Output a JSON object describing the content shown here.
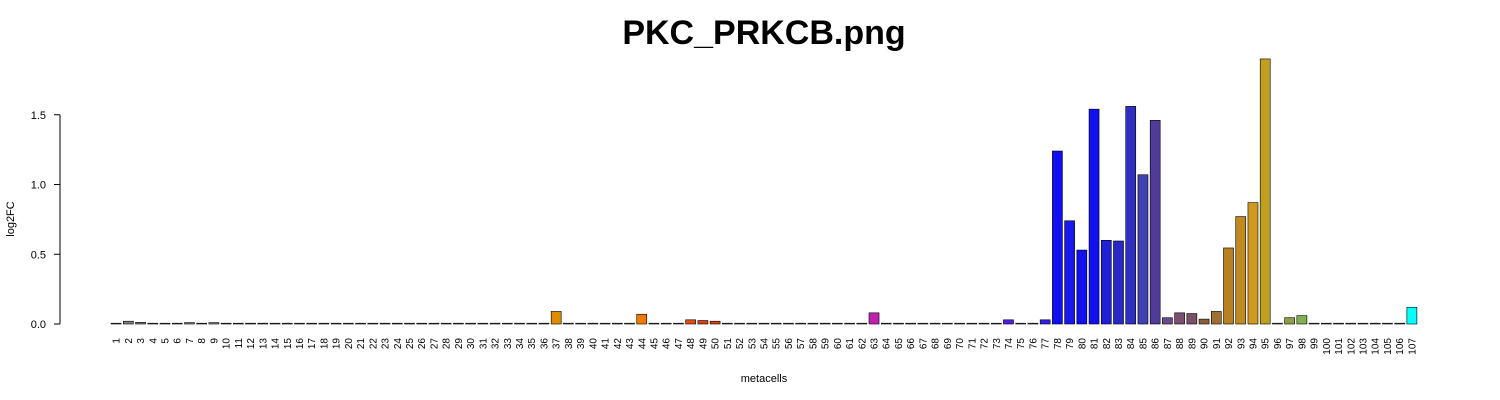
{
  "chart_data": {
    "type": "bar",
    "title": "PKC_PRKCB.png",
    "xlabel": "metacells",
    "ylabel": "log2FC",
    "ylim": [
      0,
      1.9
    ],
    "yticks": [
      0.0,
      0.5,
      1.0,
      1.5
    ],
    "ytick_labels": [
      "0.0",
      "0.5",
      "1.0",
      "1.5"
    ],
    "grid": false,
    "categories": [
      "1",
      "2",
      "3",
      "4",
      "5",
      "6",
      "7",
      "8",
      "9",
      "10",
      "11",
      "12",
      "13",
      "14",
      "15",
      "16",
      "17",
      "18",
      "19",
      "20",
      "21",
      "22",
      "23",
      "24",
      "25",
      "26",
      "27",
      "28",
      "29",
      "30",
      "31",
      "32",
      "33",
      "34",
      "35",
      "36",
      "37",
      "38",
      "39",
      "40",
      "41",
      "42",
      "43",
      "44",
      "45",
      "46",
      "47",
      "48",
      "49",
      "50",
      "51",
      "52",
      "53",
      "54",
      "55",
      "56",
      "57",
      "58",
      "59",
      "60",
      "61",
      "62",
      "63",
      "64",
      "65",
      "66",
      "67",
      "68",
      "69",
      "70",
      "71",
      "72",
      "73",
      "74",
      "75",
      "76",
      "77",
      "78",
      "79",
      "80",
      "81",
      "82",
      "83",
      "84",
      "85",
      "86",
      "87",
      "88",
      "89",
      "90",
      "91",
      "92",
      "93",
      "94",
      "95",
      "96",
      "97",
      "98",
      "99",
      "100",
      "101",
      "102",
      "103",
      "104",
      "105",
      "106",
      "107"
    ],
    "values": [
      0.0,
      0.02,
      0.012,
      0.0,
      0.0,
      0.0,
      0.01,
      0.005,
      0.01,
      0.003,
      0.0,
      0.0,
      0.0,
      0.0,
      0.0,
      0.0,
      0.0,
      0.0,
      0.0,
      0.0,
      0.0,
      0.0,
      0.0,
      0.0,
      0.0,
      0.0,
      0.0,
      0.0,
      0.0,
      0.0,
      0.0,
      0.0,
      0.0,
      0.0,
      0.0,
      0.0,
      0.09,
      0.0,
      0.0,
      0.0,
      0.0,
      0.0,
      0.0,
      0.07,
      0.0,
      0.0,
      0.0,
      0.03,
      0.025,
      0.02,
      0.0,
      0.0,
      0.0,
      0.0,
      0.0,
      0.0,
      0.0,
      0.0,
      0.0,
      0.0,
      0.0,
      0.0,
      0.08,
      0.0,
      0.0,
      0.0,
      0.0,
      0.0,
      0.0,
      0.0,
      0.0,
      0.0,
      0.0,
      0.03,
      0.0,
      0.0,
      0.03,
      1.24,
      0.74,
      0.53,
      1.54,
      0.6,
      0.595,
      1.56,
      1.07,
      1.46,
      0.045,
      0.08,
      0.075,
      0.035,
      0.09,
      0.545,
      0.77,
      0.87,
      1.9,
      0.0,
      0.045,
      0.06,
      0.0,
      0.0,
      0.0,
      0.0,
      0.0,
      0.0,
      0.0,
      0.0,
      0.12
    ],
    "colors": [
      "#7f7f7f",
      "#7f7f7f",
      "#7f7f7f",
      "#7f7f7f",
      "#7f7f7f",
      "#7f7f7f",
      "#7f7f7f",
      "#7f7f7f",
      "#7f7f7f",
      "#7f7f7f",
      "#7f7f7f",
      "#7f7f7f",
      "#7f7f7f",
      "#7f7f7f",
      "#7f7f7f",
      "#7f7f7f",
      "#7f7f7f",
      "#7f7f7f",
      "#7f7f7f",
      "#7f7f7f",
      "#7f7f7f",
      "#7f7f7f",
      "#7f7f7f",
      "#7f7f7f",
      "#7f7f7f",
      "#7f7f7f",
      "#7f7f7f",
      "#7f7f7f",
      "#7f7f7f",
      "#7f7f7f",
      "#7f7f7f",
      "#7f7f7f",
      "#7f7f7f",
      "#7f7f7f",
      "#7f7f7f",
      "#7f7f7f",
      "#e08a00",
      "#7f7f7f",
      "#7f7f7f",
      "#7f7f7f",
      "#7f7f7f",
      "#7f7f7f",
      "#7f7f7f",
      "#f07a00",
      "#7f7f7f",
      "#7f7f7f",
      "#7f7f7f",
      "#e05010",
      "#e04010",
      "#e04000",
      "#7f7f7f",
      "#7f7f7f",
      "#7f7f7f",
      "#7f7f7f",
      "#7f7f7f",
      "#7f7f7f",
      "#7f7f7f",
      "#7f7f7f",
      "#7f7f7f",
      "#7f7f7f",
      "#7f7f7f",
      "#7f7f7f",
      "#c020b0",
      "#7f7f7f",
      "#7f7f7f",
      "#7f7f7f",
      "#7f7f7f",
      "#7f7f7f",
      "#7f7f7f",
      "#7f7f7f",
      "#7f7f7f",
      "#7f7f7f",
      "#7f7f7f",
      "#5020e0",
      "#7f7f7f",
      "#7f7f7f",
      "#3020e0",
      "#1010f0",
      "#1818e8",
      "#1010f0",
      "#1010f0",
      "#2020d8",
      "#2828c8",
      "#3030c0",
      "#4040b0",
      "#503c98",
      "#6a4a8a",
      "#7a5070",
      "#7a5068",
      "#8a6040",
      "#a07030",
      "#b88020",
      "#c08a20",
      "#d09a20",
      "#c0a020",
      "#7f7f7f",
      "#90a040",
      "#80b050",
      "#7f7f7f",
      "#7f7f7f",
      "#7f7f7f",
      "#7f7f7f",
      "#7f7f7f",
      "#7f7f7f",
      "#7f7f7f",
      "#7f7f7f",
      "#00ffff"
    ]
  }
}
